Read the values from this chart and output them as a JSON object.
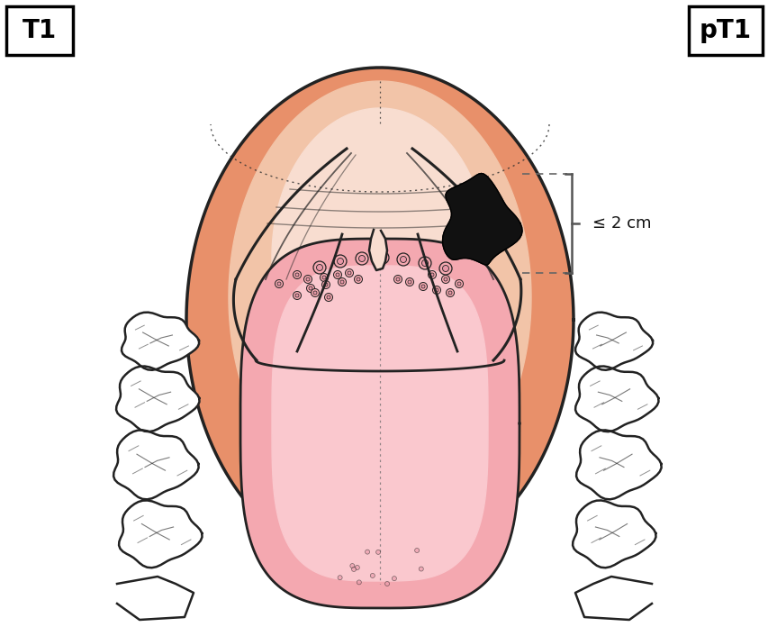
{
  "bg_color": "#ffffff",
  "title_left": "T1",
  "title_right": "pT1",
  "title_fontsize": 20,
  "title_fontweight": "bold",
  "annotation_text": "≤ 2 cm",
  "annotation_fontsize": 13,
  "outer_oval_color": "#E8906A",
  "inner_palate_color": "#F2C4A8",
  "palate_pale_color": "#F8DDD0",
  "tongue_outer_color": "#F4A8B0",
  "tongue_inner_color": "#FAC8CE",
  "tongue_tip_color": "#F8C0C8",
  "teeth_color": "#FFFFFF",
  "teeth_outline": "#222222",
  "tumour_color": "#111111",
  "line_color": "#222222",
  "dashed_color": "#666666",
  "bracket_color": "#555555",
  "dotted_color": "#333333"
}
